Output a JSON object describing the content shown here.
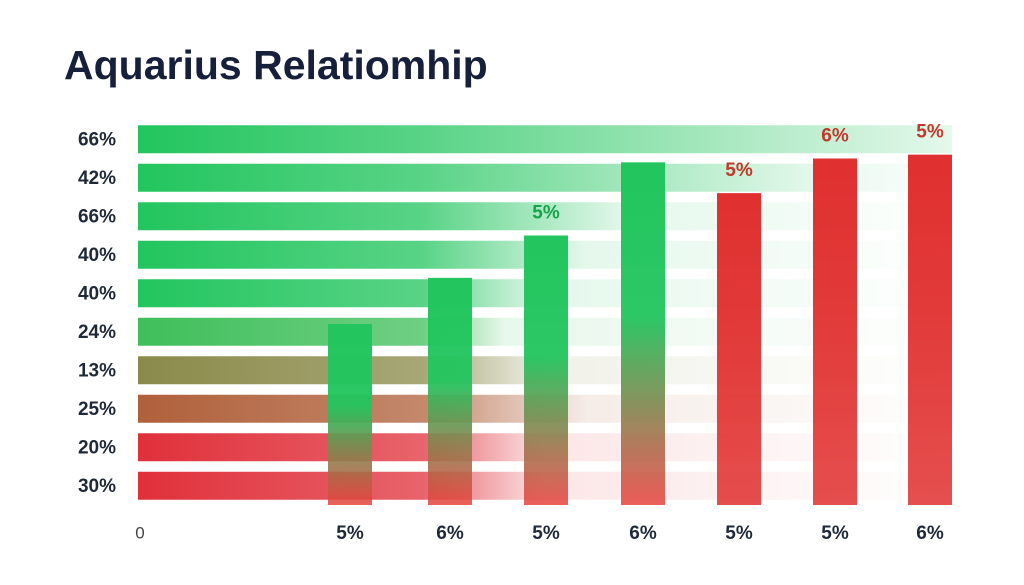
{
  "chart_data": {
    "type": "bar",
    "title": "Aquarius Relatiomhip",
    "row_labels": [
      "66%",
      "42%",
      "66%",
      "40%",
      "40%",
      "24%",
      "13%",
      "25%",
      "20%",
      "30%"
    ],
    "row_colors": [
      "#22c55e",
      "#22c55e",
      "#22c55e",
      "#22c55e",
      "#22c55e",
      "#3fbf5a",
      "#8a8a4a",
      "#b0603a",
      "#e0303a",
      "#e0303a"
    ],
    "categories": [
      "5%",
      "6%",
      "5%",
      "6%",
      "5%",
      "5%",
      "6%"
    ],
    "values": [
      47,
      59,
      70,
      89,
      81,
      90,
      91
    ],
    "colors": [
      [
        "#22c55e",
        "#e8413c"
      ],
      [
        "#22c55e",
        "#e8413c"
      ],
      [
        "#22c55e",
        "#e8413c"
      ],
      [
        "#22c55e",
        "#e8413c"
      ],
      [
        "#e0302f",
        "#e0302f"
      ],
      [
        "#e0302f",
        "#e0302f"
      ],
      [
        "#e0302f",
        "#e0302f"
      ]
    ],
    "annotations": [
      null,
      null,
      "5%",
      null,
      "5%",
      "6%",
      "5%"
    ],
    "annotation_colors": [
      null,
      null,
      "#16a34a",
      null,
      "#c0392b",
      "#c0392b",
      "#c0392b"
    ],
    "ylim": [
      0,
      100
    ],
    "yticks": [
      0
    ]
  }
}
